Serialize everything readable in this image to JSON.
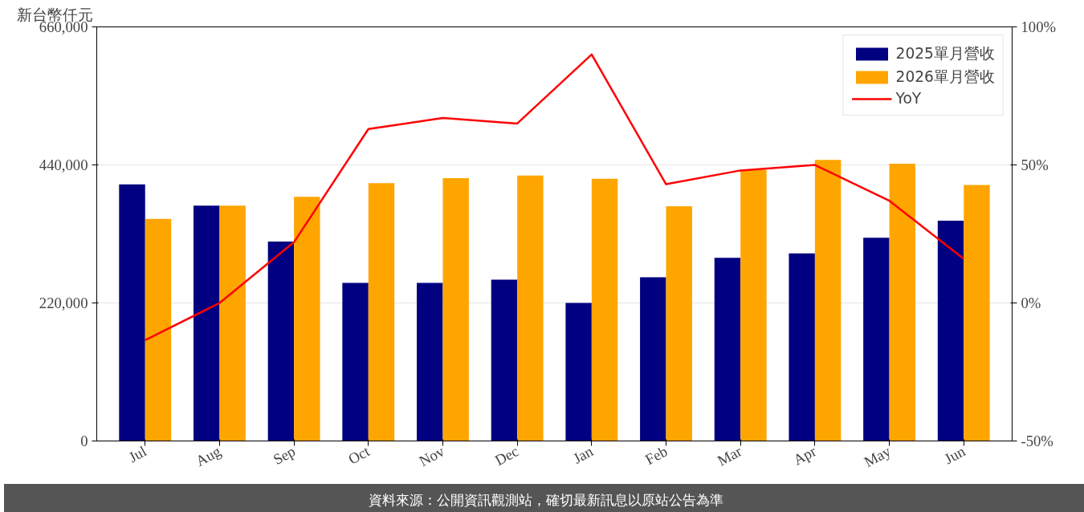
{
  "chart_data": {
    "type": "bar",
    "ylabel": "新台幣仟元",
    "categories": [
      "Jul",
      "Aug",
      "Sep",
      "Oct",
      "Nov",
      "Dec",
      "Jan",
      "Feb",
      "Mar",
      "Apr",
      "May",
      "Jun"
    ],
    "series": [
      {
        "name": "2025單月營收",
        "color": "#000080",
        "values": [
          409000,
          375000,
          318000,
          252000,
          252000,
          257000,
          220000,
          261000,
          292000,
          299000,
          324000,
          351000
        ]
      },
      {
        "name": "2026單月營收",
        "color": "#ffa500",
        "values": [
          354000,
          375000,
          389000,
          411000,
          419000,
          423000,
          418000,
          374000,
          432000,
          448000,
          442000,
          408000
        ]
      },
      {
        "name": "YoY",
        "type": "line",
        "axis": "y2",
        "color": "#ff0000",
        "values": [
          -13.5,
          0,
          22,
          63,
          67,
          65,
          90,
          43,
          48,
          50,
          37,
          16
        ]
      }
    ],
    "ylim": [
      0,
      660000
    ],
    "yticks": [
      {
        "value": 0,
        "label": "0"
      },
      {
        "value": 220000,
        "label": "220,000"
      },
      {
        "value": 440000,
        "label": "440,000"
      },
      {
        "value": 660000,
        "label": "660,000"
      }
    ],
    "y2lim": [
      -50,
      100
    ],
    "y2ticks": [
      {
        "value": -50,
        "label": "-50%"
      },
      {
        "value": 0,
        "label": "0%"
      },
      {
        "value": 50,
        "label": "50%"
      },
      {
        "value": 100,
        "label": "100%"
      }
    ],
    "grid": "y",
    "legend": "top right",
    "annotations": [
      "資料來源：公開資訊觀測站，確切最新訊息以原站公告為準"
    ]
  }
}
